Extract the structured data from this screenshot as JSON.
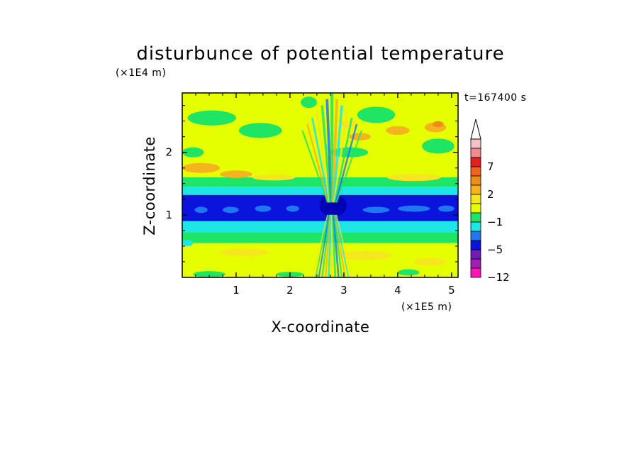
{
  "chart_data": {
    "type": "heatmap",
    "title": "disturbunce of potential temperature",
    "xlabel": "X-coordinate",
    "ylabel": "Z-coordinate",
    "x_unit": "(×1E5 m)",
    "y_unit": "(×1E4 m)",
    "time_label": "t=167400 s",
    "xlim": [
      0,
      5.12
    ],
    "ylim": [
      0,
      2.95
    ],
    "x_ticks": [
      1,
      2,
      3,
      4,
      5
    ],
    "y_ticks": [
      1,
      2
    ],
    "colorbar": {
      "tick_labels": [
        {
          "label": "7",
          "level": 7
        },
        {
          "label": "2",
          "level": 2
        },
        {
          "label": "−1",
          "level": -1
        },
        {
          "label": "−5",
          "level": -5
        },
        {
          "label": "−12",
          "level": -12
        }
      ],
      "levels": [
        {
          "lower": 11,
          "color": "#f6c0c8"
        },
        {
          "lower": 9,
          "color": "#f08c8c"
        },
        {
          "lower": 7,
          "color": "#e51e1e"
        },
        {
          "lower": 5,
          "color": "#f0641e"
        },
        {
          "lower": 3,
          "color": "#f08c1e"
        },
        {
          "lower": 2,
          "color": "#f5b41e"
        },
        {
          "lower": 1,
          "color": "#f5e61e"
        },
        {
          "lower": 0,
          "color": "#e6ff00"
        },
        {
          "lower": -1,
          "color": "#1ee664"
        },
        {
          "lower": -2,
          "color": "#1ee6e6"
        },
        {
          "lower": -3,
          "color": "#1e78f0"
        },
        {
          "lower": -5,
          "color": "#0a14dc"
        },
        {
          "lower": -7,
          "color": "#6e1eb4"
        },
        {
          "lower": -9,
          "color": "#a01eb4"
        },
        {
          "lower": -12,
          "color": "#ff14b4"
        }
      ],
      "extend": "max"
    },
    "field_bands": [
      {
        "z": [
          0.0,
          0.55
        ],
        "color": "#e6ff00"
      },
      {
        "z": [
          0.55,
          0.72
        ],
        "color": "#1ee664"
      },
      {
        "z": [
          0.72,
          0.9
        ],
        "color": "#1ee6e6"
      },
      {
        "z": [
          0.9,
          1.32
        ],
        "color": "#0a14dc"
      },
      {
        "z": [
          1.32,
          1.45
        ],
        "color": "#1ee6e6"
      },
      {
        "z": [
          1.45,
          1.6
        ],
        "color": "#1ee664"
      },
      {
        "z": [
          1.6,
          2.95
        ],
        "color": "#e6ff00"
      }
    ],
    "field_patches": [
      {
        "type": "ellipse",
        "x": 0.55,
        "z": 2.55,
        "rx": 0.45,
        "rz": 0.12,
        "color": "#1ee664"
      },
      {
        "type": "ellipse",
        "x": 1.45,
        "z": 2.35,
        "rx": 0.4,
        "rz": 0.12,
        "color": "#1ee664"
      },
      {
        "type": "ellipse",
        "x": 3.6,
        "z": 2.6,
        "rx": 0.35,
        "rz": 0.13,
        "color": "#1ee664"
      },
      {
        "type": "ellipse",
        "x": 4.75,
        "z": 2.1,
        "rx": 0.3,
        "rz": 0.12,
        "color": "#1ee664"
      },
      {
        "type": "ellipse",
        "x": 0.2,
        "z": 2.0,
        "rx": 0.2,
        "rz": 0.08,
        "color": "#1ee664"
      },
      {
        "type": "ellipse",
        "x": 2.35,
        "z": 2.8,
        "rx": 0.15,
        "rz": 0.09,
        "color": "#1ee664"
      },
      {
        "type": "ellipse",
        "x": 3.1,
        "z": 2.0,
        "rx": 0.35,
        "rz": 0.08,
        "color": "#1ee664"
      },
      {
        "type": "ellipse",
        "x": 0.35,
        "z": 1.75,
        "rx": 0.35,
        "rz": 0.08,
        "color": "#f5b41e"
      },
      {
        "type": "ellipse",
        "x": 1.0,
        "z": 1.65,
        "rx": 0.3,
        "rz": 0.06,
        "color": "#f5b41e"
      },
      {
        "type": "ellipse",
        "x": 4.0,
        "z": 2.35,
        "rx": 0.22,
        "rz": 0.07,
        "color": "#f5b41e"
      },
      {
        "type": "ellipse",
        "x": 4.7,
        "z": 2.4,
        "rx": 0.2,
        "rz": 0.08,
        "color": "#f5b41e"
      },
      {
        "type": "ellipse",
        "x": 3.3,
        "z": 2.25,
        "rx": 0.2,
        "rz": 0.06,
        "color": "#f5b41e"
      },
      {
        "type": "ellipse",
        "x": 4.75,
        "z": 2.45,
        "rx": 0.1,
        "rz": 0.05,
        "color": "#f08c1e"
      },
      {
        "type": "ellipse",
        "x": 3.1,
        "z": 2.45,
        "rx": 0.18,
        "rz": 0.06,
        "color": "#f5e61e"
      },
      {
        "type": "ellipse",
        "x": 4.3,
        "z": 1.6,
        "rx": 0.5,
        "rz": 0.06,
        "color": "#f5e61e"
      },
      {
        "type": "ellipse",
        "x": 1.7,
        "z": 1.6,
        "rx": 0.4,
        "rz": 0.05,
        "color": "#f5e61e"
      },
      {
        "type": "ellipse",
        "x": 0.35,
        "z": 1.08,
        "rx": 0.12,
        "rz": 0.05,
        "color": "#1e78f0"
      },
      {
        "type": "ellipse",
        "x": 0.9,
        "z": 1.08,
        "rx": 0.15,
        "rz": 0.05,
        "color": "#1e78f0"
      },
      {
        "type": "ellipse",
        "x": 1.5,
        "z": 1.1,
        "rx": 0.15,
        "rz": 0.05,
        "color": "#1e78f0"
      },
      {
        "type": "ellipse",
        "x": 2.05,
        "z": 1.1,
        "rx": 0.12,
        "rz": 0.05,
        "color": "#1e78f0"
      },
      {
        "type": "ellipse",
        "x": 3.6,
        "z": 1.08,
        "rx": 0.25,
        "rz": 0.05,
        "color": "#1e78f0"
      },
      {
        "type": "ellipse",
        "x": 4.3,
        "z": 1.1,
        "rx": 0.3,
        "rz": 0.05,
        "color": "#1e78f0"
      },
      {
        "type": "ellipse",
        "x": 4.9,
        "z": 1.1,
        "rx": 0.15,
        "rz": 0.05,
        "color": "#1e78f0"
      },
      {
        "type": "ellipse",
        "x": 2.8,
        "z": 1.15,
        "rx": 0.25,
        "rz": 0.18,
        "color": "#0000b4"
      },
      {
        "type": "ellipse",
        "x": 1.15,
        "z": 0.4,
        "rx": 0.45,
        "rz": 0.06,
        "color": "#f5e61e"
      },
      {
        "type": "ellipse",
        "x": 3.4,
        "z": 0.35,
        "rx": 0.5,
        "rz": 0.07,
        "color": "#f5e61e"
      },
      {
        "type": "ellipse",
        "x": 4.6,
        "z": 0.25,
        "rx": 0.3,
        "rz": 0.06,
        "color": "#f5e61e"
      },
      {
        "type": "ellipse",
        "x": 0.5,
        "z": 0.05,
        "rx": 0.3,
        "rz": 0.05,
        "color": "#1ee664"
      },
      {
        "type": "ellipse",
        "x": 4.2,
        "z": 0.08,
        "rx": 0.2,
        "rz": 0.05,
        "color": "#1ee664"
      },
      {
        "type": "ellipse",
        "x": 2.0,
        "z": 0.05,
        "rx": 0.25,
        "rz": 0.04,
        "color": "#1ee664"
      },
      {
        "type": "ellipse",
        "x": 0.1,
        "z": 0.55,
        "rx": 0.1,
        "rz": 0.05,
        "color": "#1ee6e6"
      }
    ],
    "center_plume": {
      "x_center": 2.78,
      "x_halfwidth": 0.55,
      "z_range": [
        0.0,
        2.95
      ]
    },
    "grid": false,
    "legend": "colorbar-right"
  }
}
